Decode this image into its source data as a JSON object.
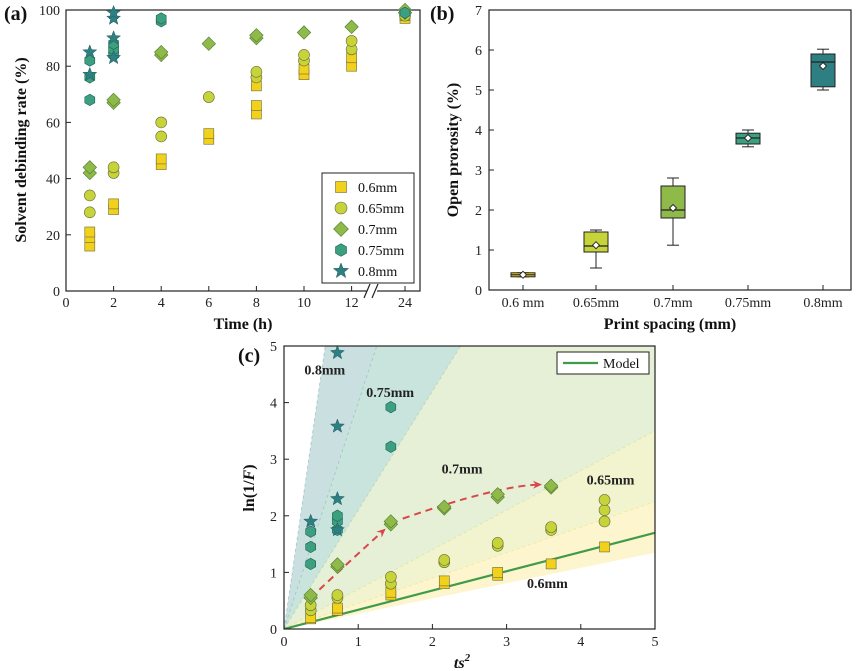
{
  "colors": {
    "c06": "#f2d11c",
    "c065": "#c6d43a",
    "c07": "#8fba4a",
    "c075": "#3b9f80",
    "c08": "#2d7f82",
    "model": "#3f9a4a",
    "arrow": "#d9474b"
  },
  "chart_data": [
    {
      "panel": "(a)",
      "type": "scatter",
      "xlabel": "Time (h)",
      "ylabel": "Solvent debinding rate (%)",
      "xticks": [
        "0",
        "2",
        "4",
        "6",
        "8",
        "10",
        "12",
        "24"
      ],
      "yticks": [
        "0",
        "20",
        "40",
        "60",
        "80",
        "100"
      ],
      "ylim": [
        0,
        100
      ],
      "axis_break": "between 12 and 24",
      "legend_position": "bottom-right",
      "series": [
        {
          "name": "0.6mm",
          "marker": "square",
          "color_key": "c06",
          "points": [
            [
              1,
              16
            ],
            [
              1,
              19
            ],
            [
              1,
              21
            ],
            [
              2,
              29
            ],
            [
              2,
              31
            ],
            [
              4,
              45
            ],
            [
              4,
              47
            ],
            [
              6,
              54
            ],
            [
              6,
              56
            ],
            [
              8,
              63
            ],
            [
              8,
              66
            ],
            [
              8,
              73
            ],
            [
              10,
              77
            ],
            [
              10,
              79
            ],
            [
              12,
              80
            ],
            [
              12,
              83
            ],
            [
              24,
              97
            ],
            [
              24,
              98
            ]
          ]
        },
        {
          "name": "0.65mm",
          "marker": "circle",
          "color_key": "c065",
          "points": [
            [
              1,
              28
            ],
            [
              1,
              34
            ],
            [
              2,
              42
            ],
            [
              2,
              44
            ],
            [
              4,
              55
            ],
            [
              4,
              60
            ],
            [
              6,
              69
            ],
            [
              8,
              76
            ],
            [
              8,
              78
            ],
            [
              10,
              82
            ],
            [
              10,
              84
            ],
            [
              12,
              86
            ],
            [
              12,
              89
            ],
            [
              24,
              98
            ]
          ]
        },
        {
          "name": "0.7mm",
          "marker": "diamond",
          "color_key": "c07",
          "points": [
            [
              1,
              42
            ],
            [
              1,
              44
            ],
            [
              2,
              67
            ],
            [
              2,
              68
            ],
            [
              4,
              84
            ],
            [
              4,
              85
            ],
            [
              6,
              88
            ],
            [
              8,
              90
            ],
            [
              8,
              91
            ],
            [
              10,
              92
            ],
            [
              12,
              94
            ],
            [
              24,
              99
            ],
            [
              24,
              100
            ]
          ]
        },
        {
          "name": "0.75mm",
          "marker": "hexagon",
          "color_key": "c075",
          "points": [
            [
              1,
              68
            ],
            [
              1,
              76
            ],
            [
              1,
              82
            ],
            [
              2,
              84
            ],
            [
              2,
              86
            ],
            [
              2,
              88
            ],
            [
              4,
              96
            ],
            [
              4,
              97
            ],
            [
              24,
              99
            ]
          ]
        },
        {
          "name": "0.8mm",
          "marker": "star",
          "color_key": "c08",
          "points": [
            [
              1,
              77
            ],
            [
              1,
              85
            ],
            [
              2,
              83
            ],
            [
              2,
              90
            ],
            [
              2,
              97
            ],
            [
              2,
              99
            ]
          ]
        }
      ]
    },
    {
      "panel": "(b)",
      "type": "box",
      "xlabel": "Print spacing (mm)",
      "ylabel": "Open prorosity (%)",
      "categories": [
        "0.6 mm",
        "0.65mm",
        "0.7mm",
        "0.75mm",
        "0.8mm"
      ],
      "yticks": [
        "0",
        "1",
        "2",
        "3",
        "4",
        "5",
        "6",
        "7"
      ],
      "ylim": [
        0,
        7
      ],
      "boxes": [
        {
          "min": 0.33,
          "q1": 0.33,
          "median": 0.38,
          "q3": 0.43,
          "max": 0.43,
          "mean": 0.38,
          "color_key": "c06"
        },
        {
          "min": 0.55,
          "q1": 0.95,
          "median": 1.1,
          "q3": 1.45,
          "max": 1.5,
          "mean": 1.12,
          "color_key": "c065"
        },
        {
          "min": 1.12,
          "q1": 1.8,
          "median": 2.0,
          "q3": 2.6,
          "max": 2.8,
          "mean": 2.05,
          "color_key": "c07"
        },
        {
          "min": 3.58,
          "q1": 3.65,
          "median": 3.8,
          "q3": 3.92,
          "max": 4.0,
          "mean": 3.8,
          "color_key": "c075"
        },
        {
          "min": 5.0,
          "q1": 5.08,
          "median": 5.7,
          "q3": 5.9,
          "max": 6.02,
          "mean": 5.6,
          "color_key": "c08"
        }
      ]
    },
    {
      "panel": "(c)",
      "type": "scatter",
      "xlabel_main": "ts",
      "xlabel_sup": "2",
      "ylabel_pre": "ln(1/",
      "ylabel_italic": "F",
      "ylabel_post": ")",
      "xticks": [
        "0",
        "1",
        "2",
        "3",
        "4",
        "5"
      ],
      "yticks": [
        "0",
        "1",
        "2",
        "3",
        "4",
        "5"
      ],
      "xlim": [
        0,
        5
      ],
      "ylim": [
        0,
        5
      ],
      "legend_position": "top-right",
      "model": {
        "name": "Model",
        "slope": 0.34
      },
      "bands": [
        {
          "color_key": "c06",
          "slope_low": 0.27,
          "slope_high": 0.45,
          "opacity": 0.22
        },
        {
          "color_key": "c065",
          "slope_low": 0.45,
          "slope_high": 0.7,
          "opacity": 0.25
        },
        {
          "color_key": "c07",
          "slope_low": 0.7,
          "slope_high": 2.1,
          "opacity": 0.22
        },
        {
          "color_key": "c075",
          "slope_low": 2.1,
          "slope_high": 4.0,
          "opacity": 0.28
        },
        {
          "color_key": "c08",
          "slope_low": 4.0,
          "slope_high": 9.0,
          "opacity": 0.25
        }
      ],
      "labels": [
        {
          "text": "0.8mm",
          "x": 0.55,
          "y": 4.5
        },
        {
          "text": "0.75mm",
          "x": 1.43,
          "y": 4.1
        },
        {
          "text": "0.7mm",
          "x": 2.4,
          "y": 2.75
        },
        {
          "text": "0.65mm",
          "x": 4.4,
          "y": 2.55
        },
        {
          "text": "0.6mm",
          "x": 3.55,
          "y": 0.72
        }
      ],
      "series": [
        {
          "name": "0.6mm",
          "marker": "square",
          "color_key": "c06",
          "points": [
            [
              0.36,
              0.18
            ],
            [
              0.36,
              0.2
            ],
            [
              0.72,
              0.33
            ],
            [
              0.72,
              0.37
            ],
            [
              1.44,
              0.6
            ],
            [
              1.44,
              0.65
            ],
            [
              2.16,
              0.8
            ],
            [
              2.16,
              0.85
            ],
            [
              2.88,
              0.95
            ],
            [
              2.88,
              1.0
            ],
            [
              3.6,
              1.15
            ],
            [
              4.32,
              1.45
            ]
          ]
        },
        {
          "name": "0.65mm",
          "marker": "circle",
          "color_key": "c065",
          "points": [
            [
              0.36,
              0.33
            ],
            [
              0.36,
              0.42
            ],
            [
              0.72,
              0.55
            ],
            [
              0.72,
              0.6
            ],
            [
              1.44,
              0.8
            ],
            [
              1.44,
              0.92
            ],
            [
              2.16,
              1.18
            ],
            [
              2.16,
              1.22
            ],
            [
              2.88,
              1.47
            ],
            [
              2.88,
              1.52
            ],
            [
              3.6,
              1.75
            ],
            [
              3.6,
              1.8
            ],
            [
              4.32,
              1.9
            ],
            [
              4.32,
              2.1
            ],
            [
              4.32,
              2.28
            ]
          ]
        },
        {
          "name": "0.7mm",
          "marker": "diamond",
          "color_key": "c07",
          "points": [
            [
              0.36,
              0.55
            ],
            [
              0.36,
              0.6
            ],
            [
              0.72,
              1.1
            ],
            [
              0.72,
              1.14
            ],
            [
              1.44,
              1.85
            ],
            [
              1.44,
              1.9
            ],
            [
              2.16,
              2.13
            ],
            [
              2.16,
              2.16
            ],
            [
              2.88,
              2.33
            ],
            [
              2.88,
              2.38
            ],
            [
              3.6,
              2.5
            ],
            [
              3.6,
              2.53
            ]
          ]
        },
        {
          "name": "0.75mm",
          "marker": "hexagon",
          "color_key": "c075",
          "points": [
            [
              0.36,
              1.15
            ],
            [
              0.36,
              1.45
            ],
            [
              0.36,
              1.72
            ],
            [
              0.72,
              1.75
            ],
            [
              0.72,
              1.9
            ],
            [
              0.72,
              2.0
            ],
            [
              1.44,
              3.22
            ],
            [
              1.44,
              3.92
            ]
          ]
        },
        {
          "name": "0.8mm",
          "marker": "star",
          "color_key": "c08",
          "points": [
            [
              0.36,
              1.9
            ],
            [
              0.72,
              1.75
            ],
            [
              0.72,
              2.3
            ],
            [
              0.72,
              3.58
            ],
            [
              0.72,
              4.88
            ]
          ]
        }
      ],
      "trend_arrow_points": [
        [
          0.36,
          0.55
        ],
        [
          0.72,
          1.0
        ],
        [
          1.35,
          1.75
        ],
        [
          1.6,
          1.95
        ],
        [
          2.9,
          2.4
        ],
        [
          3.45,
          2.55
        ]
      ]
    }
  ]
}
